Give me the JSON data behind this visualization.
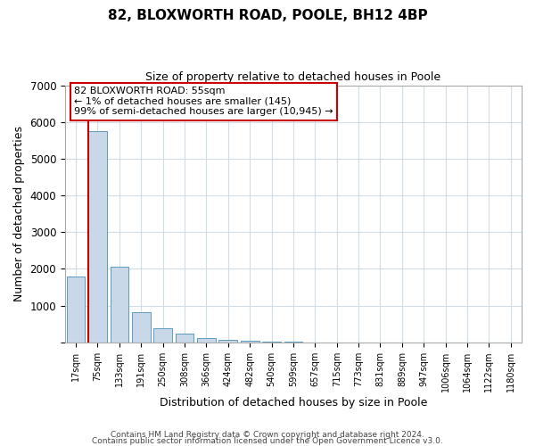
{
  "title": "82, BLOXWORTH ROAD, POOLE, BH12 4BP",
  "subtitle": "Size of property relative to detached houses in Poole",
  "xlabel": "Distribution of detached houses by size in Poole",
  "ylabel": "Number of detached properties",
  "bar_labels": [
    "17sqm",
    "75sqm",
    "133sqm",
    "191sqm",
    "250sqm",
    "308sqm",
    "366sqm",
    "424sqm",
    "482sqm",
    "540sqm",
    "599sqm",
    "657sqm",
    "715sqm",
    "773sqm",
    "831sqm",
    "889sqm",
    "947sqm",
    "1006sqm",
    "1064sqm",
    "1122sqm",
    "1180sqm"
  ],
  "bar_values": [
    1800,
    5750,
    2050,
    830,
    370,
    240,
    120,
    70,
    40,
    20,
    10,
    5,
    0,
    0,
    0,
    0,
    0,
    0,
    0,
    0,
    0
  ],
  "bar_color": "#c8d8e8",
  "bar_edge_color": "#5a9abf",
  "property_line_color": "#cc0000",
  "ylim": [
    0,
    7000
  ],
  "annotation_line1": "82 BLOXWORTH ROAD: 55sqm",
  "annotation_line2": "← 1% of detached houses are smaller (145)",
  "annotation_line3": "99% of semi-detached houses are larger (10,945) →",
  "annotation_box_edge": "#cc0000",
  "footer_line1": "Contains HM Land Registry data © Crown copyright and database right 2024.",
  "footer_line2": "Contains public sector information licensed under the Open Government Licence v3.0.",
  "bg_color": "#ffffff",
  "grid_color": "#d0dce8"
}
